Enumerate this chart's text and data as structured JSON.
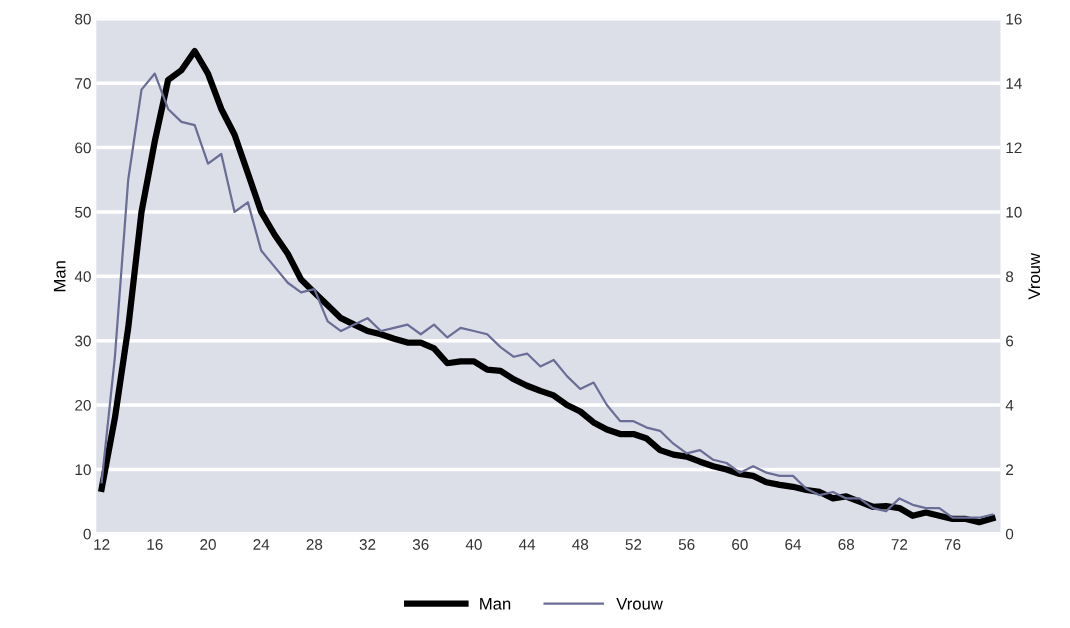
{
  "chart_data": {
    "type": "line",
    "ylabel": "Man",
    "y2label": "Vrouw",
    "x": [
      12,
      13,
      14,
      15,
      16,
      17,
      18,
      19,
      20,
      21,
      22,
      23,
      24,
      25,
      26,
      27,
      28,
      29,
      30,
      31,
      32,
      33,
      34,
      35,
      36,
      37,
      38,
      39,
      40,
      41,
      42,
      43,
      44,
      45,
      46,
      47,
      48,
      49,
      50,
      51,
      52,
      53,
      54,
      55,
      56,
      57,
      58,
      59,
      60,
      61,
      62,
      63,
      64,
      65,
      66,
      67,
      68,
      69,
      70,
      71,
      72,
      73,
      74,
      75,
      76,
      77,
      78,
      79
    ],
    "series": [
      {
        "name": "Man",
        "color": "#000000",
        "values": [
          7,
          18,
          32,
          50,
          61,
          70.5,
          72,
          75,
          71.5,
          66,
          62,
          56,
          50,
          46.5,
          43.5,
          39.5,
          37.5,
          35.5,
          33.5,
          32.5,
          31.5,
          31,
          30.3,
          29.7,
          29.7,
          28.8,
          26.5,
          26.8,
          26.8,
          25.5,
          25.3,
          24,
          23,
          22.2,
          21.5,
          20,
          19,
          17.3,
          16.2,
          15.5,
          15.5,
          14.8,
          13,
          12.3,
          12,
          11.2,
          10.5,
          10,
          9.3,
          9,
          8,
          7.6,
          7.3,
          6.8,
          6.5,
          5.5,
          5.8,
          5,
          4.2,
          4.3,
          4,
          2.8,
          3.3,
          2.8,
          2.3,
          2.3,
          1.8,
          2.4
        ]
      },
      {
        "name": "Vrouw",
        "color": "#6a6d96",
        "axis": "y2",
        "values": [
          1.6,
          5.5,
          11,
          13.8,
          14.3,
          13.2,
          12.8,
          12.7,
          11.5,
          11.8,
          10,
          10.3,
          8.8,
          8.3,
          7.8,
          7.5,
          7.6,
          6.6,
          6.3,
          6.5,
          6.7,
          6.3,
          6.4,
          6.5,
          6.2,
          6.5,
          6.1,
          6.4,
          6.3,
          6.2,
          5.8,
          5.5,
          5.6,
          5.2,
          5.4,
          4.9,
          4.5,
          4.7,
          4.0,
          3.5,
          3.5,
          3.3,
          3.2,
          2.8,
          2.5,
          2.6,
          2.3,
          2.2,
          1.9,
          2.1,
          1.9,
          1.8,
          1.8,
          1.4,
          1.2,
          1.3,
          1.1,
          1.1,
          0.8,
          0.7,
          1.1,
          0.9,
          0.8,
          0.8,
          0.5,
          0.5,
          0.5,
          0.6
        ]
      }
    ],
    "xlim": [
      11.6,
      79.6
    ],
    "xticks": [
      12,
      16,
      20,
      24,
      28,
      32,
      36,
      40,
      44,
      48,
      52,
      56,
      60,
      64,
      68,
      72,
      76
    ],
    "ylim": [
      0,
      80
    ],
    "yticks": [
      0,
      10,
      20,
      30,
      40,
      50,
      60,
      70,
      80
    ],
    "y2lim": [
      0,
      16
    ],
    "y2ticks": [
      0,
      2,
      4,
      6,
      8,
      10,
      12,
      14,
      16
    ],
    "grid": "y",
    "legend": "bottom",
    "marker": "none",
    "line_style": "solid"
  }
}
